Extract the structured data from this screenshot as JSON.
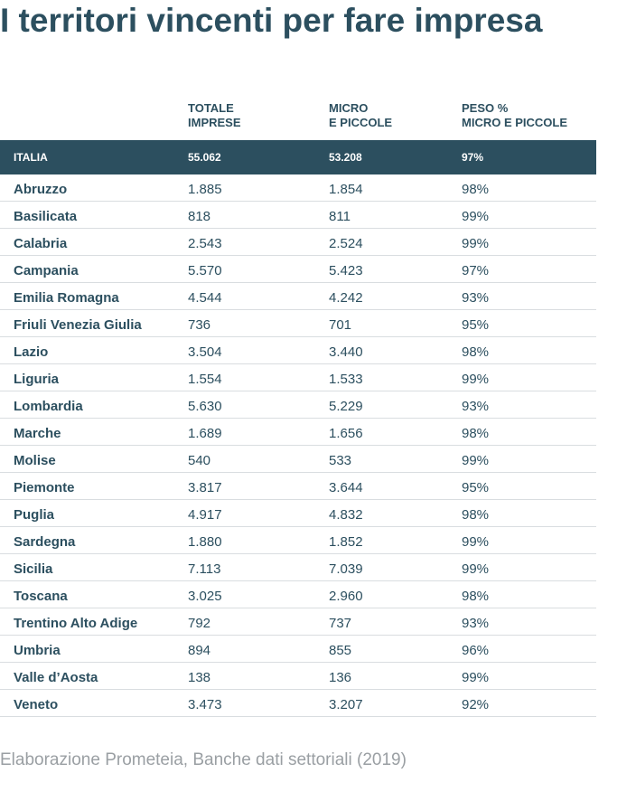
{
  "title": "I territori vincenti per fare impresa",
  "table": {
    "headers": {
      "region": "",
      "total": "TOTALE\nIMPRESE",
      "micro": "MICRO\nE PICCOLE",
      "weight": "PESO %\nMICRO E PICCOLE"
    },
    "total_row": {
      "region": "ITALIA",
      "total": "55.062",
      "micro": "53.208",
      "weight": "97%"
    },
    "rows": [
      {
        "region": "Abruzzo",
        "total": "1.885",
        "micro": "1.854",
        "weight": "98%"
      },
      {
        "region": "Basilicata",
        "total": "818",
        "micro": "811",
        "weight": "99%"
      },
      {
        "region": "Calabria",
        "total": "2.543",
        "micro": "2.524",
        "weight": "99%"
      },
      {
        "region": "Campania",
        "total": "5.570",
        "micro": "5.423",
        "weight": "97%"
      },
      {
        "region": "Emilia Romagna",
        "total": "4.544",
        "micro": "4.242",
        "weight": "93%"
      },
      {
        "region": "Friuli Venezia Giulia",
        "total": "736",
        "micro": "701",
        "weight": "95%"
      },
      {
        "region": "Lazio",
        "total": "3.504",
        "micro": "3.440",
        "weight": "98%"
      },
      {
        "region": "Liguria",
        "total": "1.554",
        "micro": "1.533",
        "weight": "99%"
      },
      {
        "region": "Lombardia",
        "total": "5.630",
        "micro": "5.229",
        "weight": "93%"
      },
      {
        "region": "Marche",
        "total": "1.689",
        "micro": "1.656",
        "weight": "98%"
      },
      {
        "region": "Molise",
        "total": "540",
        "micro": "533",
        "weight": "99%"
      },
      {
        "region": "Piemonte",
        "total": "3.817",
        "micro": "3.644",
        "weight": "95%"
      },
      {
        "region": "Puglia",
        "total": "4.917",
        "micro": "4.832",
        "weight": "98%"
      },
      {
        "region": "Sardegna",
        "total": "1.880",
        "micro": "1.852",
        "weight": "99%"
      },
      {
        "region": "Sicilia",
        "total": "7.113",
        "micro": "7.039",
        "weight": "99%"
      },
      {
        "region": "Toscana",
        "total": "3.025",
        "micro": "2.960",
        "weight": "98%"
      },
      {
        "region": "Trentino Alto Adige",
        "total": "792",
        "micro": "737",
        "weight": "93%"
      },
      {
        "region": "Umbria",
        "total": "894",
        "micro": "855",
        "weight": "96%"
      },
      {
        "region": "Valle d’Aosta",
        "total": "138",
        "micro": "136",
        "weight": "99%"
      },
      {
        "region": "Veneto",
        "total": "3.473",
        "micro": "3.207",
        "weight": "92%"
      }
    ]
  },
  "footer": "Elaborazione Prometeia, Banche dati settoriali (2019)",
  "colors": {
    "primary": "#2c4f5f",
    "divider": "#d9dde0",
    "footer": "#9a9fa3"
  }
}
